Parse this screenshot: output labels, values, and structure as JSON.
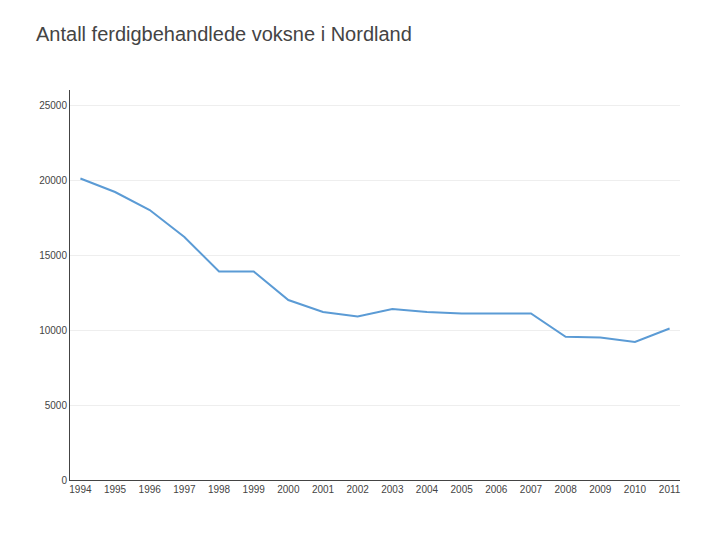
{
  "chart_data": {
    "type": "line",
    "title": "Antall ferdigbehandlede voksne i Nordland",
    "x": [
      1994,
      1995,
      1996,
      1997,
      1998,
      1999,
      2000,
      2001,
      2002,
      2003,
      2004,
      2005,
      2006,
      2007,
      2008,
      2009,
      2010,
      2011
    ],
    "values": [
      20100,
      19200,
      18000,
      16200,
      13900,
      13900,
      12000,
      11200,
      10900,
      11400,
      11200,
      11100,
      11100,
      11100,
      9550,
      9500,
      9200,
      10100
    ],
    "color": "#5B9BD5",
    "xlim": [
      1993.7,
      2011.3
    ],
    "xticks": [
      1994,
      1995,
      1996,
      1997,
      1998,
      1999,
      2000,
      2001,
      2002,
      2003,
      2004,
      2005,
      2006,
      2007,
      2008,
      2009,
      2010,
      2011
    ],
    "ylim": [
      0,
      26000
    ],
    "yticks": [
      0,
      5000,
      10000,
      15000,
      20000,
      25000
    ],
    "grid": true
  }
}
